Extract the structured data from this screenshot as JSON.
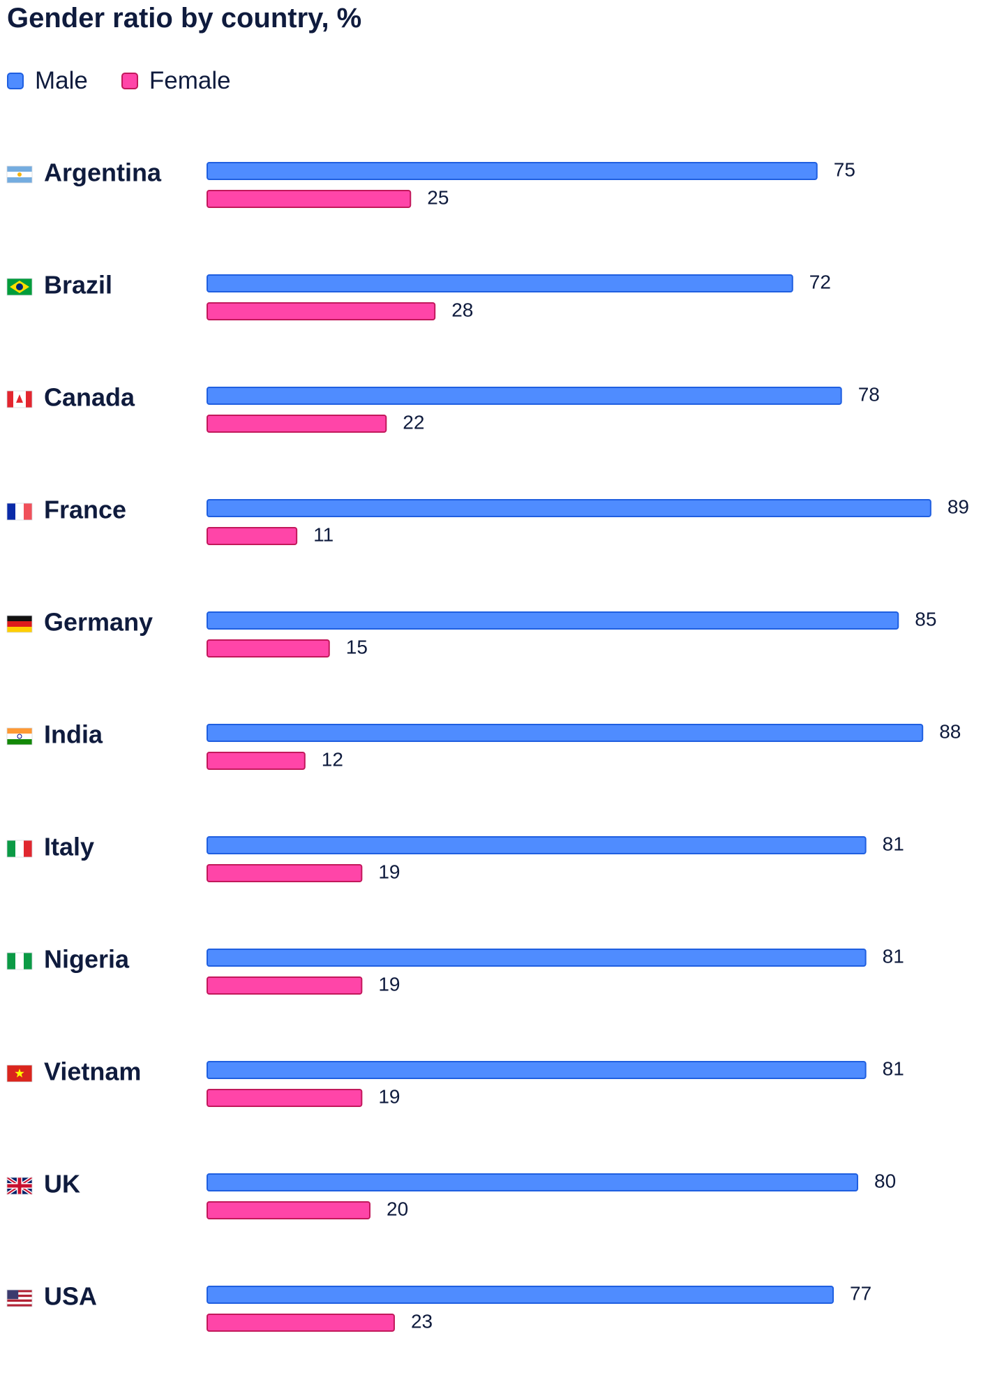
{
  "chart_data": {
    "type": "bar",
    "orientation": "horizontal",
    "title": "Gender ratio by country, %",
    "xlabel": "",
    "ylabel": "",
    "xlim": [
      0,
      100
    ],
    "grid": false,
    "legend_placement": "top-left",
    "categories": [
      "Argentina",
      "Brazil",
      "Canada",
      "France",
      "Germany",
      "India",
      "Italy",
      "Nigeria",
      "Vietnam",
      "UK",
      "USA"
    ],
    "flags": [
      "argentina-flag-icon",
      "brazil-flag-icon",
      "canada-flag-icon",
      "france-flag-icon",
      "germany-flag-icon",
      "india-flag-icon",
      "italy-flag-icon",
      "nigeria-flag-icon",
      "vietnam-flag-icon",
      "uk-flag-icon",
      "usa-flag-icon"
    ],
    "series": [
      {
        "name": "Male",
        "color": "#4f8cff",
        "border": "#1f5fe0",
        "values": [
          75,
          72,
          78,
          89,
          85,
          88,
          81,
          81,
          81,
          80,
          77
        ]
      },
      {
        "name": "Female",
        "color": "#ff45a8",
        "border": "#c2185b",
        "values": [
          25,
          28,
          22,
          11,
          15,
          12,
          19,
          19,
          19,
          20,
          23
        ]
      }
    ]
  }
}
